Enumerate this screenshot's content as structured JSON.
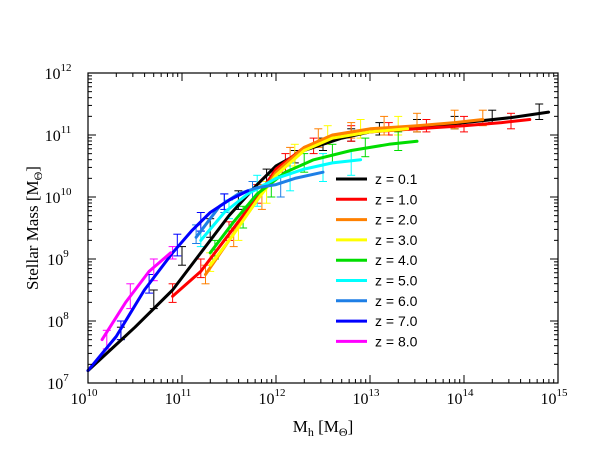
{
  "chart_data": {
    "type": "line",
    "xlabel": {
      "main": "M",
      "sub": "h",
      "rest": " [M",
      "sub2": "Θ",
      "end": "]"
    },
    "ylabel": {
      "main": "Stellar Mass [M",
      "sub": "Θ",
      "end": "]"
    },
    "xscale": "log",
    "yscale": "log",
    "xlim": [
      10000000000,
      1000000000000000
    ],
    "ylim": [
      10000000,
      1000000000000
    ],
    "x_ticks": [
      {
        "base": "10",
        "exp": "10",
        "value": 10000000000.0
      },
      {
        "base": "10",
        "exp": "11",
        "value": 100000000000.0
      },
      {
        "base": "10",
        "exp": "12",
        "value": 1000000000000.0
      },
      {
        "base": "10",
        "exp": "13",
        "value": 10000000000000.0
      },
      {
        "base": "10",
        "exp": "14",
        "value": 100000000000000.0
      },
      {
        "base": "10",
        "exp": "15",
        "value": 1000000000000000.0
      }
    ],
    "y_ticks": [
      {
        "base": "10",
        "exp": "7",
        "value": 10000000.0
      },
      {
        "base": "10",
        "exp": "8",
        "value": 100000000.0
      },
      {
        "base": "10",
        "exp": "9",
        "value": 1000000000.0
      },
      {
        "base": "10",
        "exp": "10",
        "value": 10000000000.0
      },
      {
        "base": "10",
        "exp": "11",
        "value": 100000000000.0
      },
      {
        "base": "10",
        "exp": "12",
        "value": 1000000000000.0
      }
    ],
    "grid": false,
    "legend_position": "lower-right",
    "series": [
      {
        "name": "z = 0.1",
        "color": "#000000",
        "curve_log": [
          [
            10.0,
            7.2
          ],
          [
            10.5,
            7.9
          ],
          [
            10.9,
            8.5
          ],
          [
            11.2,
            9.1
          ],
          [
            11.5,
            9.7
          ],
          [
            11.8,
            10.2
          ],
          [
            12.0,
            10.5
          ],
          [
            12.3,
            10.75
          ],
          [
            12.7,
            10.95
          ],
          [
            13.0,
            11.05
          ],
          [
            13.5,
            11.12
          ],
          [
            14.0,
            11.2
          ],
          [
            14.5,
            11.28
          ],
          [
            14.9,
            11.37
          ]
        ],
        "errorbars_log": [
          [
            10.35,
            7.7,
            7.9
          ],
          [
            10.7,
            8.2,
            8.5
          ],
          [
            11.0,
            8.9,
            9.2
          ],
          [
            11.3,
            9.35,
            9.65
          ],
          [
            11.6,
            9.8,
            10.1
          ],
          [
            11.9,
            10.2,
            10.45
          ],
          [
            12.2,
            10.55,
            10.75
          ],
          [
            12.5,
            10.75,
            10.95
          ],
          [
            12.8,
            10.9,
            11.1
          ],
          [
            13.1,
            11.0,
            11.2
          ],
          [
            13.5,
            11.05,
            11.25
          ],
          [
            13.9,
            11.1,
            11.3
          ],
          [
            14.3,
            11.2,
            11.4
          ],
          [
            14.8,
            11.25,
            11.5
          ]
        ]
      },
      {
        "name": "z = 1.0",
        "color": "#ff0000",
        "curve_log": [
          [
            10.9,
            8.4
          ],
          [
            11.2,
            8.8
          ],
          [
            11.5,
            9.4
          ],
          [
            11.8,
            10.0
          ],
          [
            12.0,
            10.45
          ],
          [
            12.3,
            10.8
          ],
          [
            12.7,
            11.0
          ],
          [
            13.0,
            11.05
          ],
          [
            13.5,
            11.1
          ],
          [
            14.0,
            11.15
          ],
          [
            14.4,
            11.2
          ],
          [
            14.7,
            11.25
          ]
        ],
        "errorbars_log": [
          [
            10.9,
            8.3,
            8.6
          ],
          [
            11.2,
            8.7,
            9.0
          ],
          [
            11.5,
            9.3,
            9.6
          ],
          [
            11.8,
            9.9,
            10.2
          ],
          [
            12.1,
            10.4,
            10.7
          ],
          [
            12.4,
            10.7,
            10.95
          ],
          [
            12.8,
            10.9,
            11.15
          ],
          [
            13.2,
            11.0,
            11.2
          ],
          [
            13.6,
            11.05,
            11.25
          ],
          [
            14.0,
            11.05,
            11.3
          ],
          [
            14.5,
            11.1,
            11.35
          ]
        ]
      },
      {
        "name": "z = 2.0",
        "color": "#ff8000",
        "curve_log": [
          [
            11.25,
            8.75
          ],
          [
            11.5,
            9.3
          ],
          [
            11.8,
            9.95
          ],
          [
            12.0,
            10.4
          ],
          [
            12.3,
            10.8
          ],
          [
            12.6,
            11.0
          ],
          [
            13.0,
            11.1
          ],
          [
            13.5,
            11.15
          ],
          [
            13.9,
            11.2
          ],
          [
            14.2,
            11.25
          ]
        ],
        "errorbars_log": [
          [
            11.25,
            8.6,
            8.9
          ],
          [
            11.55,
            9.2,
            9.5
          ],
          [
            11.85,
            9.8,
            10.2
          ],
          [
            12.15,
            10.5,
            10.8
          ],
          [
            12.45,
            10.8,
            11.1
          ],
          [
            12.8,
            10.95,
            11.2
          ],
          [
            13.15,
            11.0,
            11.3
          ],
          [
            13.5,
            11.05,
            11.35
          ],
          [
            13.9,
            11.1,
            11.4
          ],
          [
            14.2,
            11.15,
            11.4
          ]
        ]
      },
      {
        "name": "z = 3.0",
        "color": "#ffff00",
        "curve_log": [
          [
            11.3,
            8.9
          ],
          [
            11.55,
            9.4
          ],
          [
            11.8,
            9.95
          ],
          [
            12.0,
            10.35
          ],
          [
            12.3,
            10.75
          ],
          [
            12.6,
            10.95
          ],
          [
            13.0,
            11.05
          ],
          [
            13.4,
            11.1
          ]
        ],
        "errorbars_log": [
          [
            11.3,
            8.8,
            9.1
          ],
          [
            11.6,
            9.3,
            9.6
          ],
          [
            11.9,
            9.9,
            10.25
          ],
          [
            12.2,
            10.5,
            10.85
          ],
          [
            12.55,
            10.85,
            11.15
          ],
          [
            12.9,
            10.95,
            11.25
          ],
          [
            13.3,
            11.0,
            11.3
          ]
        ]
      },
      {
        "name": "z = 4.0",
        "color": "#00dd00",
        "curve_log": [
          [
            11.3,
            9.1
          ],
          [
            11.55,
            9.6
          ],
          [
            11.8,
            10.05
          ],
          [
            12.1,
            10.4
          ],
          [
            12.4,
            10.6
          ],
          [
            12.8,
            10.75
          ],
          [
            13.2,
            10.85
          ],
          [
            13.5,
            10.9
          ]
        ],
        "errorbars_log": [
          [
            11.35,
            9.0,
            9.3
          ],
          [
            11.65,
            9.5,
            9.85
          ],
          [
            11.95,
            10.0,
            10.35
          ],
          [
            12.3,
            10.4,
            10.7
          ],
          [
            12.6,
            10.55,
            10.85
          ],
          [
            12.95,
            10.65,
            10.95
          ],
          [
            13.3,
            10.75,
            11.05
          ]
        ]
      },
      {
        "name": "z = 5.0",
        "color": "#00ffff",
        "curve_log": [
          [
            11.2,
            9.3
          ],
          [
            11.45,
            9.75
          ],
          [
            11.7,
            10.05
          ],
          [
            12.0,
            10.3
          ],
          [
            12.3,
            10.45
          ],
          [
            12.6,
            10.55
          ],
          [
            12.9,
            10.6
          ]
        ],
        "errorbars_log": [
          [
            11.2,
            9.2,
            9.45
          ],
          [
            11.5,
            9.65,
            9.95
          ],
          [
            11.8,
            9.85,
            10.35
          ],
          [
            12.15,
            10.1,
            10.55
          ],
          [
            12.5,
            10.25,
            10.7
          ],
          [
            12.8,
            10.35,
            10.75
          ]
        ]
      },
      {
        "name": "z = 6.0",
        "color": "#1e7fe6",
        "curve_log": [
          [
            11.15,
            9.35
          ],
          [
            11.4,
            9.85
          ],
          [
            11.6,
            10.05
          ],
          [
            11.8,
            10.15
          ],
          [
            12.0,
            10.2
          ],
          [
            12.2,
            10.3
          ],
          [
            12.5,
            10.4
          ]
        ],
        "errorbars_log": [
          [
            11.15,
            9.25,
            9.55
          ],
          [
            11.45,
            9.75,
            10.05
          ],
          [
            11.75,
            9.9,
            10.25
          ],
          [
            12.05,
            10.0,
            10.35
          ]
        ]
      },
      {
        "name": "z = 7.0",
        "color": "#0000ff",
        "curve_log": [
          [
            10.0,
            7.2
          ],
          [
            10.3,
            7.75
          ],
          [
            10.6,
            8.5
          ],
          [
            10.9,
            9.1
          ],
          [
            11.1,
            9.45
          ],
          [
            11.3,
            9.75
          ],
          [
            11.5,
            9.95
          ],
          [
            11.7,
            10.1
          ]
        ],
        "errorbars_log": [
          [
            10.35,
            7.7,
            8.0
          ],
          [
            10.65,
            8.45,
            8.75
          ],
          [
            10.95,
            9.05,
            9.4
          ],
          [
            11.2,
            9.45,
            9.75
          ],
          [
            11.45,
            9.8,
            10.05
          ]
        ]
      },
      {
        "name": "z = 8.0",
        "color": "#ff00ff",
        "curve_log": [
          [
            10.15,
            7.7
          ],
          [
            10.4,
            8.3
          ],
          [
            10.65,
            8.8
          ],
          [
            10.88,
            9.1
          ]
        ],
        "errorbars_log": [
          [
            10.2,
            7.55,
            7.85
          ],
          [
            10.45,
            8.2,
            8.6
          ],
          [
            10.7,
            8.65,
            9.0
          ],
          [
            10.9,
            9.0,
            9.2
          ]
        ]
      }
    ]
  }
}
